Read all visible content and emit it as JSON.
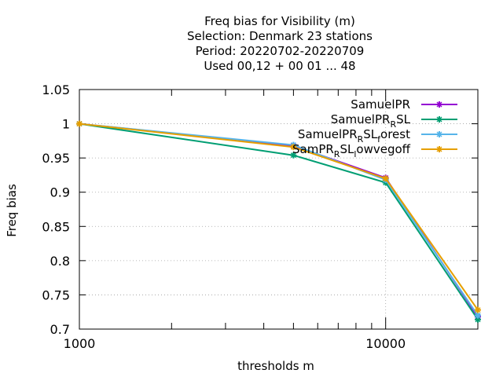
{
  "chart_data": {
    "type": "line",
    "title_lines": [
      "Freq bias  for Visibility (m)",
      "Selection: Denmark      23 stations",
      "Period: 20220702-20220709",
      "Used  00,12  + 00 01 ... 48"
    ],
    "xlabel": "thresholds m",
    "ylabel": "Freq bias",
    "x_scale": "log",
    "xlim": [
      1000,
      20000
    ],
    "ylim": [
      0.7,
      1.05
    ],
    "x_ticks": [
      1000,
      10000
    ],
    "x_tick_labels": [
      "1000",
      "10000"
    ],
    "y_ticks": [
      0.7,
      0.75,
      0.8,
      0.85,
      0.9,
      0.95,
      1.0,
      1.05
    ],
    "y_tick_labels": [
      "0.7",
      "0.75",
      "0.8",
      "0.85",
      "0.9",
      "0.95",
      "1",
      "1.05"
    ],
    "grid": true,
    "legend_position": "top-right",
    "series": [
      {
        "name": "SamuelPR",
        "legend_parts": [
          [
            "SamuelPR",
            "normal"
          ]
        ],
        "color": "#9400d3",
        "x": [
          1000,
          5000,
          10000,
          20000
        ],
        "y": [
          1.0,
          0.968,
          0.921,
          0.718
        ]
      },
      {
        "name": "SamuelPR_RSL",
        "legend_parts": [
          [
            "SamuelPR",
            "normal"
          ],
          [
            "R",
            "sub"
          ],
          [
            "SL",
            "normal"
          ]
        ],
        "color": "#009e73",
        "x": [
          1000,
          5000,
          10000,
          20000
        ],
        "y": [
          1.0,
          0.954,
          0.914,
          0.714
        ]
      },
      {
        "name": "SamuelPR_RSL_forest",
        "legend_parts": [
          [
            "SamuelPR",
            "normal"
          ],
          [
            "R",
            "sub"
          ],
          [
            "SL",
            "normal"
          ],
          [
            "f",
            "sub"
          ],
          [
            "orest",
            "normal"
          ]
        ],
        "color": "#56b4e9",
        "x": [
          1000,
          5000,
          10000,
          20000
        ],
        "y": [
          1.0,
          0.969,
          0.918,
          0.72
        ]
      },
      {
        "name": "SamPR_RSL_lowvegoff",
        "legend_parts": [
          [
            "SamPR",
            "normal"
          ],
          [
            "R",
            "sub"
          ],
          [
            "SL",
            "normal"
          ],
          [
            "l",
            "sub"
          ],
          [
            "owvegoff",
            "normal"
          ]
        ],
        "color": "#e69f00",
        "x": [
          1000,
          5000,
          10000,
          20000
        ],
        "y": [
          1.0,
          0.966,
          0.92,
          0.728
        ]
      }
    ]
  }
}
